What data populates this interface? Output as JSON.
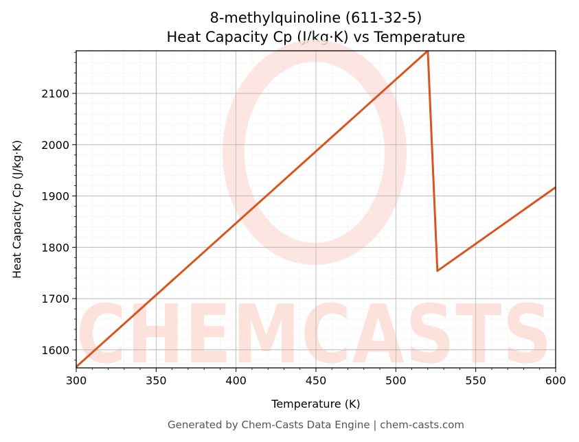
{
  "chart_data": {
    "type": "line",
    "title": "8-methylquinoline (611-32-5)",
    "subtitle": "Heat Capacity Cp (J/kg·K) vs Temperature",
    "xlabel": "Temperature (K)",
    "ylabel": "Heat Capacity Cp (J/kg·K)",
    "xlim": [
      300,
      600
    ],
    "ylim": [
      1565,
      2183
    ],
    "x_ticks": [
      300,
      350,
      400,
      450,
      500,
      550,
      600
    ],
    "y_ticks": [
      1600,
      1700,
      1800,
      1900,
      2000,
      2100
    ],
    "grid": true,
    "legend": "none",
    "series": [
      {
        "color": "#d9541e",
        "points": [
          [
            300,
            1567
          ],
          [
            520,
            2183
          ],
          [
            526,
            1754
          ],
          [
            600,
            1917
          ]
        ]
      }
    ],
    "watermark": "CHEMCASTS",
    "footer": "Generated by Chem-Casts Data Engine | chem-casts.com"
  }
}
